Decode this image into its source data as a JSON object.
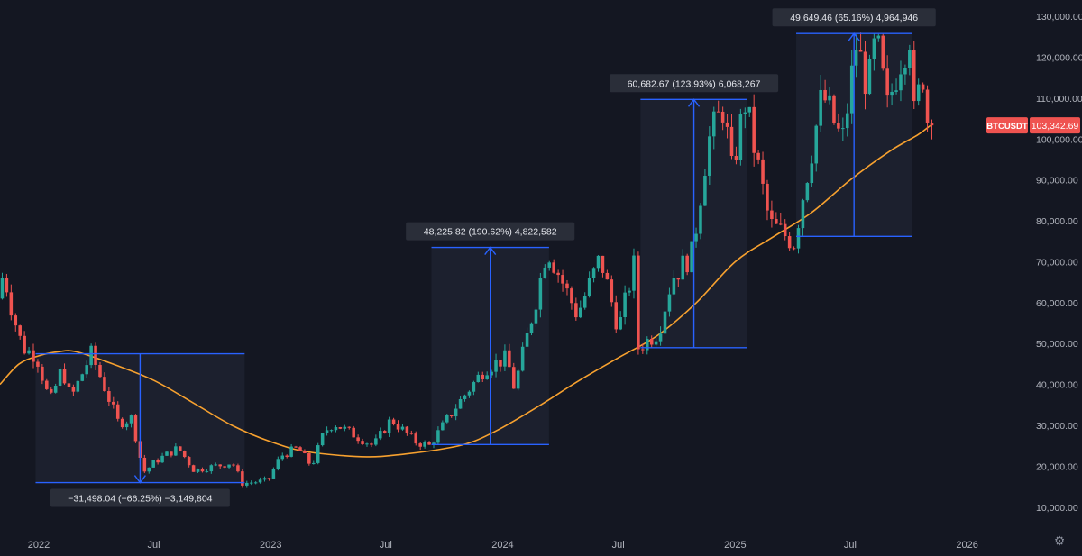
{
  "chart_data": {
    "type": "candlestick",
    "symbol": "BTCUSDT",
    "last_price": 103342.69,
    "last_price_label": "103,342.69",
    "ylim": [
      4000,
      134000
    ],
    "y_ticks": [
      {
        "value": 130000,
        "label": "130,000.00"
      },
      {
        "value": 120000,
        "label": "120,000.00"
      },
      {
        "value": 110000,
        "label": "110,000.00"
      },
      {
        "value": 100000,
        "label": "100,000.00"
      },
      {
        "value": 90000,
        "label": "90,000.00"
      },
      {
        "value": 80000,
        "label": "80,000.00"
      },
      {
        "value": 70000,
        "label": "70,000.00"
      },
      {
        "value": 60000,
        "label": "60,000.00"
      },
      {
        "value": 50000,
        "label": "50,000.00"
      },
      {
        "value": 40000,
        "label": "40,000.00"
      },
      {
        "value": 30000,
        "label": "30,000.00"
      },
      {
        "value": 20000,
        "label": "20,000.00"
      },
      {
        "value": 10000,
        "label": "10,000.00"
      }
    ],
    "x_range": [
      "2021-11-01",
      "2026-01-20"
    ],
    "x_ticks": [
      {
        "date": "2022-01-01",
        "label": "2022"
      },
      {
        "date": "2022-07-01",
        "label": "Jul"
      },
      {
        "date": "2023-01-01",
        "label": "2023"
      },
      {
        "date": "2023-07-01",
        "label": "Jul"
      },
      {
        "date": "2024-01-01",
        "label": "2024"
      },
      {
        "date": "2024-07-01",
        "label": "Jul"
      },
      {
        "date": "2025-01-01",
        "label": "2025"
      },
      {
        "date": "2025-07-01",
        "label": "Jul"
      },
      {
        "date": "2026-01-01",
        "label": "2026"
      }
    ],
    "grid": false,
    "colors": {
      "up": "#26a69a",
      "down": "#ef5350",
      "ma": "#f7a12f",
      "measure": "#2962ff",
      "price_tag": "#ef5350"
    },
    "price_path": [
      [
        "2021-11-01",
        61000
      ],
      [
        "2021-11-10",
        67500
      ],
      [
        "2021-11-25",
        57000
      ],
      [
        "2021-12-10",
        49000
      ],
      [
        "2022-01-01",
        47000
      ],
      [
        "2022-01-22",
        35500
      ],
      [
        "2022-02-10",
        44000
      ],
      [
        "2022-02-24",
        36500
      ],
      [
        "2022-03-28",
        47500
      ],
      [
        "2022-04-15",
        40500
      ],
      [
        "2022-05-10",
        30500
      ],
      [
        "2022-05-31",
        31800
      ],
      [
        "2022-06-18",
        18500
      ],
      [
        "2022-07-10",
        21500
      ],
      [
        "2022-08-12",
        24500
      ],
      [
        "2022-09-06",
        19000
      ],
      [
        "2022-10-25",
        20500
      ],
      [
        "2022-11-05",
        21000
      ],
      [
        "2022-11-21",
        15800
      ],
      [
        "2022-12-31",
        16500
      ],
      [
        "2023-01-20",
        22500
      ],
      [
        "2023-02-16",
        24500
      ],
      [
        "2023-03-10",
        20000
      ],
      [
        "2023-03-30",
        28500
      ],
      [
        "2023-04-14",
        30500
      ],
      [
        "2023-06-15",
        25000
      ],
      [
        "2023-07-13",
        31500
      ],
      [
        "2023-08-20",
        26000
      ],
      [
        "2023-09-11",
        25000
      ],
      [
        "2023-10-25",
        35000
      ],
      [
        "2023-12-08",
        44000
      ],
      [
        "2024-01-11",
        46500
      ],
      [
        "2024-01-23",
        39000
      ],
      [
        "2024-02-28",
        62000
      ],
      [
        "2024-03-14",
        73500
      ],
      [
        "2024-05-01",
        57000
      ],
      [
        "2024-06-06",
        71000
      ],
      [
        "2024-07-05",
        53500
      ],
      [
        "2024-07-29",
        69000
      ],
      [
        "2024-08-05",
        49000
      ],
      [
        "2024-09-06",
        53000
      ],
      [
        "2024-09-27",
        66000
      ],
      [
        "2024-10-29",
        72000
      ],
      [
        "2024-11-22",
        99000
      ],
      [
        "2024-12-17",
        108000
      ],
      [
        "2024-12-30",
        92000
      ],
      [
        "2025-01-20",
        109000
      ],
      [
        "2025-02-28",
        79000
      ],
      [
        "2025-04-07",
        75000
      ],
      [
        "2025-05-08",
        100000
      ],
      [
        "2025-05-22",
        111000
      ],
      [
        "2025-06-22",
        99000
      ],
      [
        "2025-07-14",
        123000
      ],
      [
        "2025-08-02",
        112500
      ],
      [
        "2025-08-14",
        124500
      ],
      [
        "2025-09-01",
        107500
      ],
      [
        "2025-09-18",
        118000
      ],
      [
        "2025-10-06",
        126000
      ],
      [
        "2025-10-11",
        104000
      ],
      [
        "2025-10-27",
        116000
      ],
      [
        "2025-11-04",
        103342
      ]
    ],
    "moving_average": [
      [
        "2021-11-01",
        40000
      ],
      [
        "2021-12-01",
        45000
      ],
      [
        "2022-01-01",
        47000
      ],
      [
        "2022-02-01",
        48000
      ],
      [
        "2022-03-01",
        48000
      ],
      [
        "2022-05-01",
        44800
      ],
      [
        "2022-07-01",
        41000
      ],
      [
        "2022-09-01",
        35500
      ],
      [
        "2022-11-01",
        30000
      ],
      [
        "2023-01-01",
        26000
      ],
      [
        "2023-03-01",
        23500
      ],
      [
        "2023-06-01",
        22300
      ],
      [
        "2023-08-01",
        23000
      ],
      [
        "2023-10-01",
        24300
      ],
      [
        "2023-11-15",
        26000
      ],
      [
        "2024-01-01",
        29500
      ],
      [
        "2024-03-01",
        35000
      ],
      [
        "2024-05-01",
        41000
      ],
      [
        "2024-07-01",
        46500
      ],
      [
        "2024-09-01",
        52000
      ],
      [
        "2024-11-01",
        60000
      ],
      [
        "2025-01-01",
        70000
      ],
      [
        "2025-03-01",
        76000
      ],
      [
        "2025-05-01",
        82000
      ],
      [
        "2025-07-01",
        90000
      ],
      [
        "2025-09-01",
        97000
      ],
      [
        "2025-10-15",
        101000
      ],
      [
        "2025-11-04",
        103300
      ]
    ],
    "measurements": [
      {
        "start_date": "2021-12-27",
        "end_date": "2022-11-21",
        "start_price": 47500,
        "end_price": 16000,
        "label": "−31,498.04 (−66.25%) −3,149,804",
        "label_position": "below"
      },
      {
        "start_date": "2023-09-11",
        "end_date": "2024-03-14",
        "start_price": 25300,
        "end_price": 73500,
        "label": "48,225.82 (190.62%) 4,822,582",
        "label_position": "above"
      },
      {
        "start_date": "2024-08-05",
        "end_date": "2025-01-20",
        "start_price": 49000,
        "end_price": 109700,
        "label": "60,682.67 (123.93%) 6,068,267",
        "label_position": "above"
      },
      {
        "start_date": "2025-04-07",
        "end_date": "2025-10-06",
        "start_price": 76200,
        "end_price": 125800,
        "label": "49,649.46 (65.16%) 4,964,946",
        "label_position": "above"
      }
    ]
  },
  "ui": {
    "settings_glyph": "⚙"
  }
}
